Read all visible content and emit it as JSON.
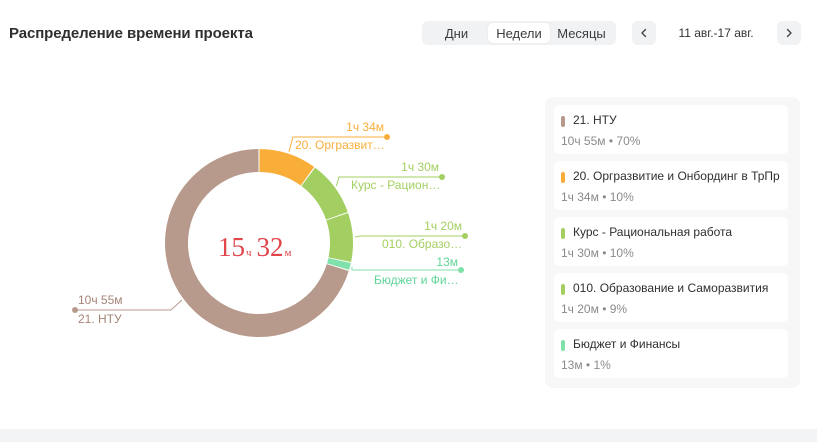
{
  "header": {
    "title": "Распределение времени проекта"
  },
  "period_switch": {
    "options": [
      "Дни",
      "Недели",
      "Месяцы"
    ],
    "selected": "Недели"
  },
  "date_nav": {
    "range": "11 авг.-17 авг."
  },
  "center_total": {
    "hours": "15",
    "hours_unit": "ч",
    "minutes": "32",
    "minutes_unit": "м"
  },
  "chart_data": {
    "type": "pie",
    "variant": "donut",
    "total_label": "15ч 32м",
    "slices": [
      {
        "name": "20. Оргразвит…",
        "full_name": "20. Оргразвитие и Онбординг в ТрПр",
        "duration": "1ч 34м",
        "minutes": 94,
        "percent": 10,
        "color": "#f9ae3a"
      },
      {
        "name": "Курс - Рацион…",
        "full_name": "Курс - Рациональная работа",
        "duration": "1ч 30м",
        "minutes": 90,
        "percent": 10,
        "color": "#a3cf62"
      },
      {
        "name": "010. Образо…",
        "full_name": "010. Образование и Саморазвития",
        "duration": "1ч 20м",
        "minutes": 80,
        "percent": 9,
        "color": "#a3cf62"
      },
      {
        "name": "Бюджет и Фи…",
        "full_name": "Бюджет и Финансы",
        "duration": "13м",
        "minutes": 13,
        "percent": 1,
        "color": "#7fe0aa"
      },
      {
        "name": "21. НТУ",
        "full_name": "21. НТУ",
        "duration": "10ч 55м",
        "minutes": 655,
        "percent": 70,
        "color": "#b89a8d"
      }
    ]
  },
  "legend": {
    "items": [
      {
        "name": "21. НТУ",
        "meta": "10ч 55м • 70%",
        "color": "#b89a8d"
      },
      {
        "name": "20. Оргразвитие и Онбординг в ТрПр",
        "meta": "1ч 34м • 10%",
        "color": "#f9ae3a"
      },
      {
        "name": "Курс - Рациональная работа",
        "meta": "1ч 30м • 10%",
        "color": "#a3cf62"
      },
      {
        "name": "010. Образование и Саморазвития",
        "meta": "1ч 20м • 9%",
        "color": "#a3cf62"
      },
      {
        "name": "Бюджет и Финансы",
        "meta": "13м • 1%",
        "color": "#7fe0aa"
      }
    ]
  },
  "icons": {
    "prev": "chevron-left-icon",
    "next": "chevron-right-icon"
  }
}
